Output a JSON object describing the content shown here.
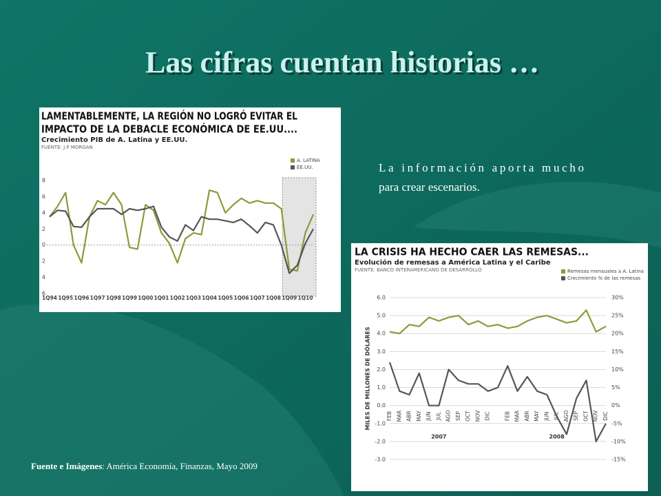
{
  "slide": {
    "title": "Las cifras cuentan historias …",
    "body": [
      "La información aporta mucho",
      "para crear escenarios."
    ],
    "source_label": "Fuente e Imágenes",
    "source_text": ": América Economía, Finanzas, Mayo 2009"
  },
  "chart_data": [
    {
      "type": "line",
      "title": [
        "LAMENTABLEMENTE, LA REGIÓN NO LOGRÓ EVITAR EL",
        "IMPACTO DE LA DEBACLE ECONÓMICA DE EE.UU...."
      ],
      "subtitle": "Crecimiento PIB de A. Latina y EE.UU.",
      "source": "FUENTE: J.P MORGAN",
      "categories": [
        "1Q94",
        null,
        "1Q95",
        null,
        "1Q96",
        null,
        "1Q97",
        null,
        "1Q98",
        null,
        "1Q99",
        null,
        "1Q00",
        null,
        "1Q01",
        null,
        "1Q02",
        null,
        "1Q03",
        null,
        "1Q04",
        null,
        "1Q05",
        null,
        "1Q06",
        null,
        "1Q07",
        null,
        "1Q08",
        null,
        "1Q09",
        null,
        "1Q10",
        null
      ],
      "series": [
        {
          "name": "A. LATINA",
          "color": "#8a9a3a",
          "values": [
            3.5,
            4.8,
            6.5,
            0.0,
            -2.2,
            3.5,
            5.5,
            5.0,
            6.5,
            5.0,
            -0.3,
            -0.5,
            5.0,
            4.3,
            1.5,
            0.2,
            -2.2,
            0.8,
            1.5,
            1.3,
            6.8,
            6.5,
            4.0,
            5.0,
            5.8,
            5.2,
            5.5,
            5.2,
            5.2,
            4.5,
            -3.0,
            -3.2,
            1.5,
            3.8
          ]
        },
        {
          "name": "EE.UU.",
          "color": "#555555",
          "values": [
            3.5,
            4.3,
            4.2,
            2.3,
            2.2,
            3.5,
            4.5,
            4.5,
            4.5,
            3.8,
            4.5,
            4.3,
            4.5,
            4.8,
            2.2,
            1.0,
            0.5,
            2.5,
            1.8,
            3.5,
            3.2,
            3.2,
            3.0,
            2.8,
            3.2,
            2.4,
            1.5,
            2.8,
            2.5,
            0.0,
            -3.5,
            -2.5,
            0.2,
            2.0
          ]
        }
      ],
      "highlight_start": "1Q09",
      "ylim": [
        -6,
        8
      ],
      "yticks": [
        {
          "value": -6,
          "label": "6"
        },
        {
          "value": -4,
          "label": "4"
        },
        {
          "value": -2,
          "label": "2"
        },
        0,
        2,
        4,
        6,
        8
      ]
    },
    {
      "type": "line",
      "title": "LA CRISIS HA HECHO CAER LAS REMESAS...",
      "subtitle": "Evolución de remesas a América Latina y el Caribe",
      "source": "FUENTE: BANCO INTERAMERICANO DE DESARROLLO",
      "ylabel": "MILES DE MILLONES DE DÓLARES",
      "categories": [
        "FEB",
        "MAR",
        "ABR",
        "MAY",
        "JUN",
        "JUL",
        "AGO",
        "SEP",
        "OCT",
        "NOV",
        "DIC",
        null,
        "FEB",
        "MAR",
        "ABR",
        "MAY",
        "JUN",
        "JUL",
        "AGO",
        "SEP",
        "OCT",
        "NOV",
        "DIC"
      ],
      "groups": [
        "2007",
        "2008"
      ],
      "series": [
        {
          "name": "Remesas mensuales a A. Latina",
          "color": "#8a9a3a",
          "values": [
            4.1,
            4.0,
            4.5,
            4.4,
            4.9,
            4.7,
            4.9,
            5.0,
            4.5,
            4.7,
            4.4,
            4.5,
            4.3,
            4.4,
            4.7,
            4.9,
            5.0,
            4.8,
            4.6,
            4.7,
            5.3,
            4.1,
            4.4
          ]
        },
        {
          "name": "Crecimiento % de las remesas",
          "color": "#555555",
          "axis": "y2",
          "values": [
            12,
            4,
            3,
            9,
            0,
            0,
            10,
            7,
            6,
            6,
            4,
            5,
            11,
            4,
            8,
            4,
            3,
            -3,
            -8,
            2,
            7,
            -10,
            -5
          ]
        }
      ],
      "grid": true,
      "ylim": [
        -3,
        6
      ],
      "yticks": [
        {
          "value": -3,
          "label": "-3.0"
        },
        {
          "value": -2,
          "label": "-2.0"
        },
        {
          "value": -1,
          "label": "-1.0"
        },
        {
          "value": 0,
          "label": "0.0"
        },
        {
          "value": 1,
          "label": "1.0"
        },
        {
          "value": 2,
          "label": "2.0"
        },
        {
          "value": 3,
          "label": "3.0"
        },
        {
          "value": 4,
          "label": "4.0"
        },
        {
          "value": 5,
          "label": "5.0"
        },
        {
          "value": 6,
          "label": "6.0"
        }
      ],
      "y2lim": [
        -15,
        30
      ],
      "y2ticks": [
        {
          "value": -15,
          "label": "-15%"
        },
        {
          "value": -10,
          "label": "-10%"
        },
        {
          "value": -5,
          "label": "-5%"
        },
        {
          "value": 0,
          "label": "0%"
        },
        {
          "value": 5,
          "label": "5%"
        },
        {
          "value": 10,
          "label": "10%"
        },
        {
          "value": 15,
          "label": "15%"
        },
        {
          "value": 20,
          "label": "20%"
        },
        {
          "value": 25,
          "label": "25%"
        },
        {
          "value": 30,
          "label": "30%"
        }
      ]
    }
  ]
}
